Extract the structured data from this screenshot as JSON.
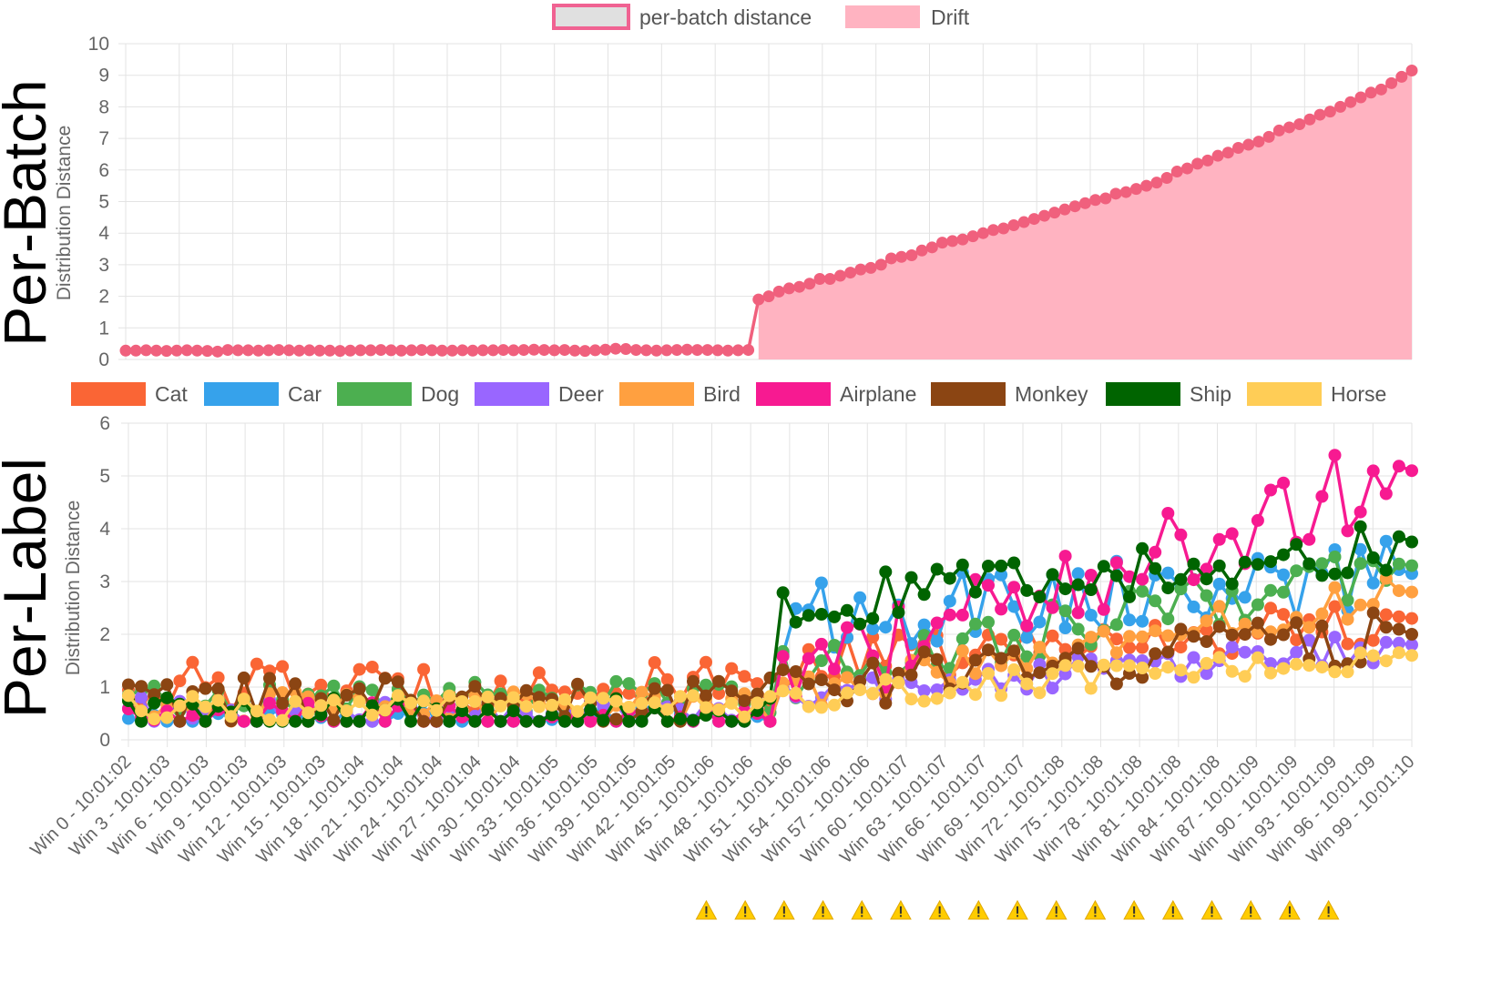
{
  "chart_data": [
    {
      "type": "area",
      "panel_title": "Per-Batch",
      "ylabel": "Distribution Distance",
      "ylim": [
        0,
        10
      ],
      "yticks": [
        0,
        1,
        2,
        3,
        4,
        5,
        6,
        7,
        8,
        9,
        10
      ],
      "legend_position": "top-center",
      "legend": [
        {
          "label": "per-batch distance",
          "style": "outline",
          "color": "#f06292",
          "fill": "#e0e0e0"
        },
        {
          "label": "Drift",
          "style": "filled",
          "color": "#ffb3c1"
        }
      ],
      "series": [
        {
          "name": "per-batch distance",
          "color": "#f0607d",
          "drift_fill": "#ffb3c1",
          "drift_from_index": 51,
          "x": "window_index",
          "values": [
            0.28,
            0.28,
            0.29,
            0.28,
            0.27,
            0.28,
            0.29,
            0.28,
            0.27,
            0.25,
            0.3,
            0.29,
            0.29,
            0.28,
            0.29,
            0.3,
            0.29,
            0.28,
            0.29,
            0.28,
            0.28,
            0.27,
            0.28,
            0.29,
            0.29,
            0.3,
            0.29,
            0.28,
            0.29,
            0.3,
            0.29,
            0.28,
            0.28,
            0.29,
            0.28,
            0.29,
            0.29,
            0.3,
            0.29,
            0.3,
            0.31,
            0.3,
            0.29,
            0.3,
            0.28,
            0.27,
            0.29,
            0.31,
            0.34,
            0.33,
            0.3,
            0.29,
            0.28,
            0.29,
            0.3,
            0.31,
            0.3,
            0.3,
            0.29,
            0.28,
            0.29,
            0.3,
            1.9,
            2.0,
            2.15,
            2.25,
            2.3,
            2.4,
            2.55,
            2.55,
            2.65,
            2.75,
            2.85,
            2.9,
            3.0,
            3.2,
            3.25,
            3.3,
            3.45,
            3.55,
            3.7,
            3.75,
            3.8,
            3.9,
            4.0,
            4.1,
            4.15,
            4.25,
            4.35,
            4.45,
            4.55,
            4.65,
            4.75,
            4.85,
            4.95,
            5.05,
            5.1,
            5.25,
            5.3,
            5.4,
            5.5,
            5.6,
            5.75,
            5.95,
            6.05,
            6.2,
            6.3,
            6.45,
            6.55,
            6.7,
            6.8,
            6.9,
            7.05,
            7.25,
            7.35,
            7.45,
            7.6,
            7.75,
            7.85,
            8.0,
            8.15,
            8.3,
            8.45,
            8.55,
            8.75,
            8.95,
            9.15
          ]
        }
      ]
    },
    {
      "type": "line",
      "panel_title": "Per-Label",
      "ylabel": "Distribution Distance",
      "ylim": [
        0,
        6
      ],
      "yticks": [
        0,
        1,
        2,
        3,
        4,
        5,
        6
      ],
      "legend_position": "top",
      "n_windows": 101,
      "x_tick_labels": [
        "Win 0 - 10:01:02",
        "Win 3 - 10:01:03",
        "Win 6 - 10:01:03",
        "Win 9 - 10:01:03",
        "Win 12 - 10:01:03",
        "Win 15 - 10:01:03",
        "Win 18 - 10:01:04",
        "Win 21 - 10:01:04",
        "Win 24 - 10:01:04",
        "Win 27 - 10:01:04",
        "Win 30 - 10:01:04",
        "Win 33 - 10:01:05",
        "Win 36 - 10:01:05",
        "Win 39 - 10:01:05",
        "Win 42 - 10:01:05",
        "Win 45 - 10:01:06",
        "Win 48 - 10:01:06",
        "Win 51 - 10:01:06",
        "Win 54 - 10:01:06",
        "Win 57 - 10:01:06",
        "Win 60 - 10:01:07",
        "Win 63 - 10:01:07",
        "Win 66 - 10:01:07",
        "Win 69 - 10:01:07",
        "Win 72 - 10:01:08",
        "Win 75 - 10:01:08",
        "Win 78 - 10:01:08",
        "Win 81 - 10:01:08",
        "Win 84 - 10:01:08",
        "Win 87 - 10:01:09",
        "Win 90 - 10:01:09",
        "Win 93 - 10:01:09",
        "Win 96 - 10:01:09",
        "Win 99 - 10:01:10"
      ],
      "drift_start_window": 51,
      "warning_icon": "warning-icon",
      "warning_ticks_from": 15,
      "warning_ticks_to": 31,
      "series": [
        {
          "name": "Cat",
          "color": "#fa6535",
          "pre": [
            1.0,
            1.7,
            0.6
          ],
          "post": [
            1.4,
            2.3,
            0.9
          ]
        },
        {
          "name": "Car",
          "color": "#36a2eb",
          "pre": [
            0.4,
            0.7,
            0.3
          ],
          "post": [
            2.3,
            3.15,
            1.4
          ]
        },
        {
          "name": "Dog",
          "color": "#4caf50",
          "pre": [
            0.8,
            1.3,
            0.4
          ],
          "post": [
            1.2,
            3.3,
            1.0
          ]
        },
        {
          "name": "Deer",
          "color": "#9966ff",
          "pre": [
            0.5,
            1.0,
            0.4
          ],
          "post": [
            0.8,
            1.8,
            0.6
          ]
        },
        {
          "name": "Bird",
          "color": "#ffa040",
          "pre": [
            0.6,
            1.0,
            0.4
          ],
          "post": [
            0.8,
            2.8,
            0.7
          ]
        },
        {
          "name": "Airplane",
          "color": "#f71a91",
          "pre": [
            0.4,
            0.9,
            0.4
          ],
          "post": [
            1.0,
            5.1,
            1.6
          ]
        },
        {
          "name": "Monkey",
          "color": "#8b4513",
          "pre": [
            0.7,
            1.4,
            0.6
          ],
          "post": [
            1.0,
            2.0,
            1.0
          ]
        },
        {
          "name": "Ship",
          "color": "#006400",
          "pre": [
            0.4,
            1.0,
            0.5
          ],
          "post": [
            2.5,
            3.75,
            1.0
          ]
        },
        {
          "name": "Horse",
          "color": "#ffcd56",
          "pre": [
            0.6,
            0.9,
            0.3
          ],
          "post": [
            0.8,
            1.6,
            0.5
          ]
        }
      ]
    }
  ]
}
